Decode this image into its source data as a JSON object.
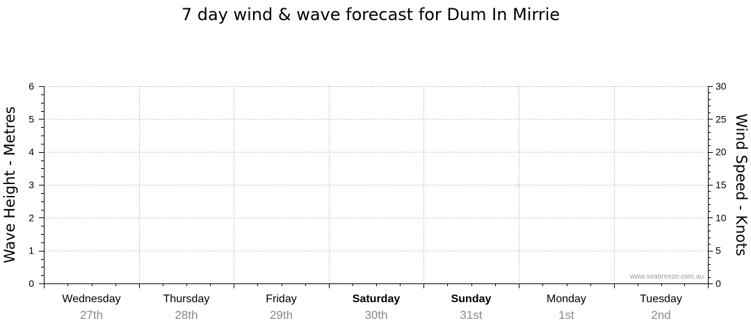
{
  "chart_data": {
    "type": "line",
    "title": "7 day wind & wave forecast for Dum In Mirrie",
    "ylabel_left": "Wave Height - Metres",
    "ylabel_right": "Wind Speed - Knots",
    "ylim_left": [
      0,
      6
    ],
    "ylim_right": [
      0,
      30
    ],
    "yticks_left": [
      0,
      1,
      2,
      3,
      4,
      5,
      6
    ],
    "yticks_right": [
      0,
      5,
      10,
      15,
      20,
      25,
      30
    ],
    "days": [
      {
        "name": "Wednesday",
        "date": "27th",
        "bold": false
      },
      {
        "name": "Thursday",
        "date": "28th",
        "bold": false
      },
      {
        "name": "Friday",
        "date": "29th",
        "bold": false
      },
      {
        "name": "Saturday",
        "date": "30th",
        "bold": true
      },
      {
        "name": "Sunday",
        "date": "31st",
        "bold": true
      },
      {
        "name": "Monday",
        "date": "1st",
        "bold": false
      },
      {
        "name": "Tuesday",
        "date": "2nd",
        "bold": false
      }
    ],
    "series": [],
    "grid": true,
    "watermark": "www.seabreeze.com.au"
  }
}
